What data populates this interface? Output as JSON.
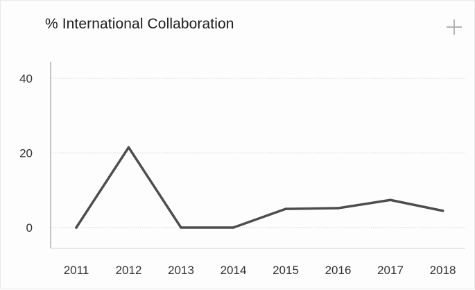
{
  "card": {
    "title": "% International Collaboration",
    "expand_icon": "plus-icon"
  },
  "colors": {
    "line": "#4d4d4d",
    "grid": "#d4d4d4",
    "axis": "#8a8a8a",
    "text": "#333333",
    "icon": "#b3b3b3"
  },
  "chart_data": {
    "type": "line",
    "title": "% International Collaboration",
    "xlabel": "",
    "ylabel": "",
    "categories": [
      "2011",
      "2012",
      "2013",
      "2014",
      "2015",
      "2016",
      "2017",
      "2018"
    ],
    "series": [
      {
        "values": [
          0,
          21.5,
          0,
          0,
          5,
          5.2,
          7.4,
          4.5
        ]
      }
    ],
    "ylim": [
      0,
      40
    ],
    "yticks": [
      0,
      20,
      40
    ],
    "grid": true,
    "legend": "none"
  }
}
